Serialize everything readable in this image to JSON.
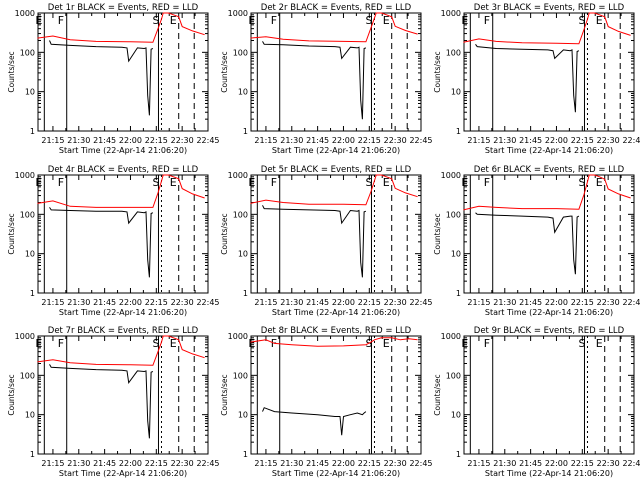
{
  "chart_data": [
    {
      "type": "line",
      "title": "Det 1r BLACK = Events, RED = LLD",
      "xlabel": "Start Time (22-Apr-14 21:06:20)",
      "ylabel": "Counts/sec",
      "xticks": [
        "21:15",
        "21:30",
        "21:45",
        "22:00",
        "22:15",
        "22:30",
        "22:45"
      ],
      "yticks": [
        "1",
        "10",
        "100",
        "1000"
      ],
      "ylim": [
        1,
        1000
      ],
      "yscale": "log",
      "markers": [
        {
          "label": "E",
          "time": "21:10"
        },
        {
          "label": "F",
          "time": "21:23"
        },
        {
          "label": "S",
          "time": "22:18"
        },
        {
          "label": "E",
          "time": "22:28"
        }
      ],
      "series": [
        {
          "name": "BLACK = Events",
          "color": "#000000",
          "x": [
            "21:13",
            "21:14",
            "21:25",
            "21:40",
            "21:55",
            "21:58",
            "21:59",
            "22:04",
            "22:08",
            "22:09",
            "22:10",
            "22:11",
            "22:12",
            "22:13"
          ],
          "y": [
            200,
            160,
            150,
            140,
            135,
            130,
            60,
            130,
            125,
            130,
            8,
            2.5,
            120,
            125
          ]
        },
        {
          "name": "RED = LLD",
          "color": "#ff0000",
          "x": [
            "21:06",
            "21:15",
            "21:25",
            "21:40",
            "22:00",
            "22:13",
            "22:16",
            "22:18",
            "22:19",
            "22:22",
            "22:25",
            "22:28",
            "22:30",
            "22:36",
            "22:43"
          ],
          "y": [
            230,
            260,
            210,
            190,
            185,
            180,
            400,
            700,
            1000,
            1000,
            900,
            800,
            450,
            350,
            280
          ]
        }
      ]
    },
    {
      "type": "line",
      "title": "Det 2r BLACK = Events, RED = LLD",
      "xlabel": "Start Time (22-Apr-14 21:06:20)",
      "ylabel": "Counts/sec",
      "xticks": [
        "21:15",
        "21:30",
        "21:45",
        "22:00",
        "22:15",
        "22:30",
        "22:45"
      ],
      "yticks": [
        "1",
        "10",
        "100",
        "1000"
      ],
      "ylim": [
        1,
        1000
      ],
      "yscale": "log",
      "markers": [
        {
          "label": "E",
          "time": "21:10"
        },
        {
          "label": "F",
          "time": "21:23"
        },
        {
          "label": "S",
          "time": "22:18"
        },
        {
          "label": "E",
          "time": "22:28"
        }
      ],
      "series": [
        {
          "name": "BLACK = Events",
          "color": "#000000",
          "x": [
            "21:13",
            "21:14",
            "21:25",
            "21:40",
            "21:55",
            "21:58",
            "21:59",
            "22:04",
            "22:08",
            "22:09",
            "22:10",
            "22:11",
            "22:12",
            "22:13"
          ],
          "y": [
            190,
            160,
            155,
            145,
            140,
            135,
            70,
            135,
            130,
            135,
            6,
            2,
            125,
            130
          ]
        },
        {
          "name": "RED = LLD",
          "color": "#ff0000",
          "x": [
            "21:06",
            "21:15",
            "21:25",
            "21:40",
            "22:00",
            "22:13",
            "22:16",
            "22:18",
            "22:19",
            "22:22",
            "22:25",
            "22:28",
            "22:30",
            "22:36",
            "22:43"
          ],
          "y": [
            230,
            250,
            215,
            195,
            190,
            185,
            420,
            750,
            1000,
            1000,
            900,
            800,
            460,
            360,
            290
          ]
        }
      ]
    },
    {
      "type": "line",
      "title": "Det 3r BLACK = Events, RED = LLD",
      "xlabel": "Start Time (22-Apr-14 21:06:20)",
      "ylabel": "Counts/sec",
      "xticks": [
        "21:15",
        "21:30",
        "21:45",
        "22:00",
        "22:15",
        "22:30",
        "22:45"
      ],
      "yticks": [
        "1",
        "10",
        "100",
        "1000"
      ],
      "ylim": [
        1,
        1000
      ],
      "yscale": "log",
      "markers": [
        {
          "label": "E",
          "time": "21:10"
        },
        {
          "label": "F",
          "time": "21:23"
        },
        {
          "label": "S",
          "time": "22:18"
        },
        {
          "label": "E",
          "time": "22:28"
        }
      ],
      "series": [
        {
          "name": "BLACK = Events",
          "color": "#000000",
          "x": [
            "21:13",
            "21:14",
            "21:25",
            "21:40",
            "21:55",
            "21:58",
            "21:59",
            "22:04",
            "22:08",
            "22:09",
            "22:10",
            "22:11",
            "22:12",
            "22:13"
          ],
          "y": [
            160,
            140,
            125,
            120,
            115,
            110,
            70,
            115,
            110,
            115,
            8,
            3,
            105,
            110
          ]
        },
        {
          "name": "RED = LLD",
          "color": "#ff0000",
          "x": [
            "21:06",
            "21:15",
            "21:25",
            "21:40",
            "22:00",
            "22:13",
            "22:16",
            "22:18",
            "22:19",
            "22:22",
            "22:25",
            "22:28",
            "22:30",
            "22:36",
            "22:43"
          ],
          "y": [
            180,
            220,
            190,
            175,
            170,
            165,
            380,
            700,
            1000,
            1000,
            900,
            800,
            450,
            340,
            270
          ]
        }
      ]
    },
    {
      "type": "line",
      "title": "Det 4r BLACK = Events, RED = LLD",
      "xlabel": "Start Time (22-Apr-14 21:06:20)",
      "ylabel": "Counts/sec",
      "xticks": [
        "21:15",
        "21:30",
        "21:45",
        "22:00",
        "22:15",
        "22:30",
        "22:45"
      ],
      "yticks": [
        "1",
        "10",
        "100",
        "1000"
      ],
      "ylim": [
        1,
        1000
      ],
      "yscale": "log",
      "markers": [
        {
          "label": "E",
          "time": "21:10"
        },
        {
          "label": "F",
          "time": "21:23"
        },
        {
          "label": "S",
          "time": "22:18"
        },
        {
          "label": "E",
          "time": "22:28"
        }
      ],
      "series": [
        {
          "name": "BLACK = Events",
          "color": "#000000",
          "x": [
            "21:13",
            "21:14",
            "21:25",
            "21:40",
            "21:55",
            "21:58",
            "21:59",
            "22:04",
            "22:08",
            "22:09",
            "22:10",
            "22:11",
            "22:12",
            "22:13"
          ],
          "y": [
            150,
            130,
            125,
            120,
            120,
            115,
            60,
            115,
            110,
            115,
            7,
            2.5,
            105,
            110
          ]
        },
        {
          "name": "RED = LLD",
          "color": "#ff0000",
          "x": [
            "21:06",
            "21:15",
            "21:25",
            "21:40",
            "22:00",
            "22:13",
            "22:16",
            "22:18",
            "22:19",
            "22:22",
            "22:25",
            "22:28",
            "22:30",
            "22:36",
            "22:43"
          ],
          "y": [
            190,
            220,
            160,
            150,
            150,
            150,
            350,
            700,
            1000,
            1000,
            900,
            800,
            450,
            330,
            260
          ]
        }
      ]
    },
    {
      "type": "line",
      "title": "Det 5r BLACK = Events, RED = LLD",
      "xlabel": "Start Time (22-Apr-14 21:06:20)",
      "ylabel": "Counts/sec",
      "xticks": [
        "21:15",
        "21:30",
        "21:45",
        "22:00",
        "22:15",
        "22:30",
        "22:45"
      ],
      "yticks": [
        "1",
        "10",
        "100",
        "1000"
      ],
      "ylim": [
        1,
        1000
      ],
      "yscale": "log",
      "markers": [
        {
          "label": "E",
          "time": "21:10"
        },
        {
          "label": "F",
          "time": "21:23"
        },
        {
          "label": "S",
          "time": "22:18"
        },
        {
          "label": "E",
          "time": "22:28"
        }
      ],
      "series": [
        {
          "name": "BLACK = Events",
          "color": "#000000",
          "x": [
            "21:13",
            "21:14",
            "21:25",
            "21:40",
            "21:55",
            "21:58",
            "21:59",
            "22:04",
            "22:08",
            "22:09",
            "22:10",
            "22:11",
            "22:12",
            "22:13"
          ],
          "y": [
            170,
            140,
            135,
            130,
            125,
            120,
            60,
            125,
            120,
            125,
            6,
            2.5,
            115,
            120
          ]
        },
        {
          "name": "RED = LLD",
          "color": "#ff0000",
          "x": [
            "21:06",
            "21:15",
            "21:25",
            "21:40",
            "22:00",
            "22:13",
            "22:16",
            "22:18",
            "22:19",
            "22:22",
            "22:25",
            "22:28",
            "22:30",
            "22:36",
            "22:43"
          ],
          "y": [
            190,
            230,
            200,
            180,
            180,
            175,
            380,
            720,
            1000,
            1000,
            900,
            800,
            460,
            350,
            280
          ]
        }
      ]
    },
    {
      "type": "line",
      "title": "Det 6r BLACK = Events, RED = LLD",
      "xlabel": "Start Time (22-Apr-14 21:06:20)",
      "ylabel": "Counts/sec",
      "xticks": [
        "21:15",
        "21:30",
        "21:45",
        "22:00",
        "22:15",
        "22:30",
        "22:45"
      ],
      "yticks": [
        "1",
        "10",
        "100",
        "1000"
      ],
      "ylim": [
        1,
        1000
      ],
      "yscale": "log",
      "markers": [
        {
          "label": "E",
          "time": "21:10"
        },
        {
          "label": "F",
          "time": "21:23"
        },
        {
          "label": "S",
          "time": "22:18"
        },
        {
          "label": "E",
          "time": "22:28"
        }
      ],
      "series": [
        {
          "name": "BLACK = Events",
          "color": "#000000",
          "x": [
            "21:13",
            "21:14",
            "21:25",
            "21:40",
            "21:55",
            "21:58",
            "21:59",
            "22:04",
            "22:08",
            "22:09",
            "22:10",
            "22:11",
            "22:12",
            "22:13"
          ],
          "y": [
            110,
            100,
            95,
            90,
            85,
            80,
            35,
            85,
            90,
            90,
            7,
            3,
            85,
            90
          ]
        },
        {
          "name": "RED = LLD",
          "color": "#ff0000",
          "x": [
            "21:06",
            "21:15",
            "21:25",
            "21:40",
            "22:00",
            "22:13",
            "22:16",
            "22:18",
            "22:19",
            "22:22",
            "22:25",
            "22:28",
            "22:30",
            "22:36",
            "22:43"
          ],
          "y": [
            130,
            160,
            150,
            140,
            140,
            135,
            320,
            680,
            1000,
            1000,
            900,
            780,
            440,
            330,
            260
          ]
        }
      ]
    },
    {
      "type": "line",
      "title": "Det 7r BLACK = Events, RED = LLD",
      "xlabel": "Start Time (22-Apr-14 21:06:20)",
      "ylabel": "Counts/sec",
      "xticks": [
        "21:15",
        "21:30",
        "21:45",
        "22:00",
        "22:15",
        "22:30",
        "22:45"
      ],
      "yticks": [
        "1",
        "10",
        "100",
        "1000"
      ],
      "ylim": [
        1,
        1000
      ],
      "yscale": "log",
      "markers": [
        {
          "label": "E",
          "time": "21:10"
        },
        {
          "label": "F",
          "time": "21:23"
        },
        {
          "label": "S",
          "time": "22:18"
        },
        {
          "label": "E",
          "time": "22:28"
        }
      ],
      "series": [
        {
          "name": "BLACK = Events",
          "color": "#000000",
          "x": [
            "21:13",
            "21:14",
            "21:25",
            "21:40",
            "21:55",
            "21:58",
            "21:59",
            "22:04",
            "22:08",
            "22:09",
            "22:10",
            "22:11",
            "22:12",
            "22:13"
          ],
          "y": [
            190,
            160,
            150,
            140,
            135,
            130,
            65,
            130,
            125,
            130,
            7,
            2.5,
            120,
            125
          ]
        },
        {
          "name": "RED = LLD",
          "color": "#ff0000",
          "x": [
            "21:06",
            "21:15",
            "21:25",
            "21:40",
            "22:00",
            "22:13",
            "22:16",
            "22:18",
            "22:19",
            "22:22",
            "22:25",
            "22:28",
            "22:30",
            "22:36",
            "22:43"
          ],
          "y": [
            220,
            250,
            210,
            190,
            185,
            180,
            400,
            700,
            1000,
            1000,
            900,
            800,
            450,
            350,
            280
          ]
        }
      ]
    },
    {
      "type": "line",
      "title": "Det 8r BLACK = Events, RED = LLD",
      "xlabel": "Start Time (22-Apr-14 21:06:20)",
      "ylabel": "Counts/sec",
      "xticks": [
        "21:15",
        "21:30",
        "21:45",
        "22:00",
        "22:15",
        "22:30",
        "22:45"
      ],
      "yticks": [
        "1",
        "10",
        "100",
        "1000"
      ],
      "ylim": [
        1,
        1000
      ],
      "yscale": "log",
      "markers": [
        {
          "label": "E",
          "time": "21:10"
        },
        {
          "label": "F",
          "time": "21:23"
        },
        {
          "label": "S",
          "time": "22:18"
        },
        {
          "label": "E",
          "time": "22:28"
        }
      ],
      "series": [
        {
          "name": "BLACK = Events",
          "color": "#000000",
          "x": [
            "21:13",
            "21:14",
            "21:20",
            "21:30",
            "21:45",
            "21:55",
            "21:58",
            "21:59",
            "22:00",
            "22:04",
            "22:08",
            "22:11",
            "22:12",
            "22:13"
          ],
          "y": [
            12,
            15,
            12,
            11,
            10,
            9,
            9,
            3,
            9,
            10,
            11,
            10,
            11,
            12
          ]
        },
        {
          "name": "RED = LLD",
          "color": "#ff0000",
          "x": [
            "21:06",
            "21:15",
            "21:20",
            "21:30",
            "21:45",
            "22:00",
            "22:13",
            "22:16",
            "22:18",
            "22:22",
            "22:28",
            "22:33",
            "22:38",
            "22:43"
          ],
          "y": [
            700,
            800,
            650,
            600,
            550,
            560,
            600,
            700,
            800,
            900,
            900,
            800,
            850,
            800
          ]
        }
      ]
    },
    {
      "type": "line",
      "title": "Det 9r BLACK = Events, RED = LLD",
      "xlabel": "Start Time (22-Apr-14 21:06:20)",
      "ylabel": "Counts/sec",
      "xticks": [
        "21:15",
        "21:30",
        "21:45",
        "22:00",
        "22:15",
        "22:30",
        "22:45"
      ],
      "yticks": [
        "1",
        "10",
        "100",
        "1000"
      ],
      "ylim": [
        1,
        1000
      ],
      "yscale": "log",
      "markers": [
        {
          "label": "E",
          "time": "21:10"
        },
        {
          "label": "F",
          "time": "21:23"
        },
        {
          "label": "S",
          "time": "22:18"
        },
        {
          "label": "E",
          "time": "22:28"
        }
      ],
      "series": []
    }
  ]
}
